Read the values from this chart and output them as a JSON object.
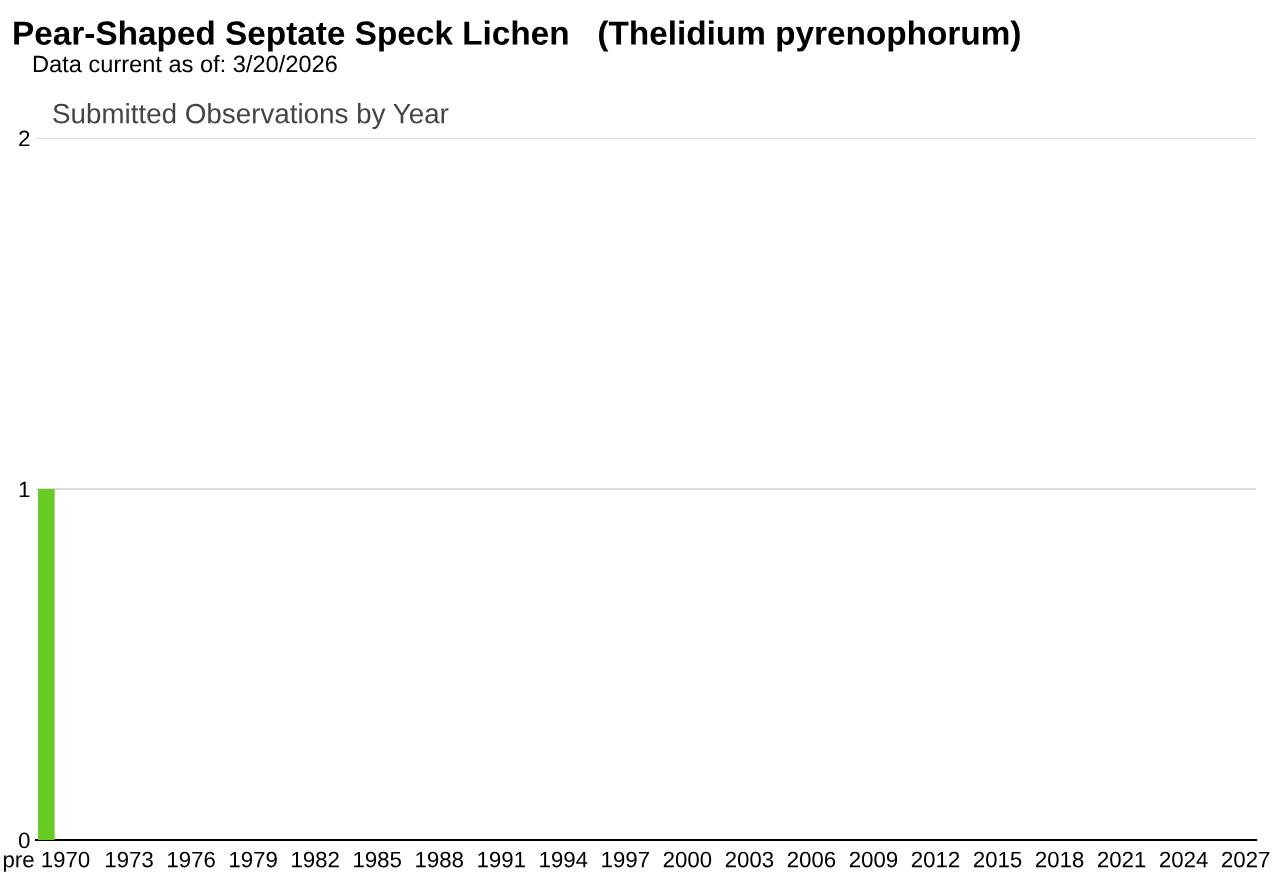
{
  "chart_data": {
    "type": "bar",
    "title": "Pear-Shaped Septate Speck Lichen   (Thelidium pyrenophorum)",
    "subtitle": "Data current as of: 3/20/2026",
    "annotations": [
      "Submitted Observations by Year"
    ],
    "categories": [
      "pre 1970",
      null,
      null,
      null,
      "1973",
      null,
      null,
      "1976",
      null,
      null,
      "1979",
      null,
      null,
      "1982",
      null,
      null,
      "1985",
      null,
      null,
      "1988",
      null,
      null,
      "1991",
      null,
      null,
      "1994",
      null,
      null,
      "1997",
      null,
      null,
      "2000",
      null,
      null,
      "2003",
      null,
      null,
      "2006",
      null,
      null,
      "2009",
      null,
      null,
      "2012",
      null,
      null,
      "2015",
      null,
      null,
      "2018",
      null,
      null,
      "2021",
      null,
      null,
      "2024",
      null,
      null,
      "2027"
    ],
    "values": [
      1,
      0,
      0,
      0,
      0,
      0,
      0,
      0,
      0,
      0,
      0,
      0,
      0,
      0,
      0,
      0,
      0,
      0,
      0,
      0,
      0,
      0,
      0,
      0,
      0,
      0,
      0,
      0,
      0,
      0,
      0,
      0,
      0,
      0,
      0,
      0,
      0,
      0,
      0,
      0,
      0,
      0,
      0,
      0,
      0,
      0,
      0,
      0,
      0,
      0,
      0,
      0,
      0,
      0,
      0,
      0,
      0,
      0,
      0
    ],
    "color": "#66cc22",
    "ylim": [
      0,
      2
    ],
    "yticks": [
      0,
      1,
      2
    ],
    "grid": "y"
  }
}
